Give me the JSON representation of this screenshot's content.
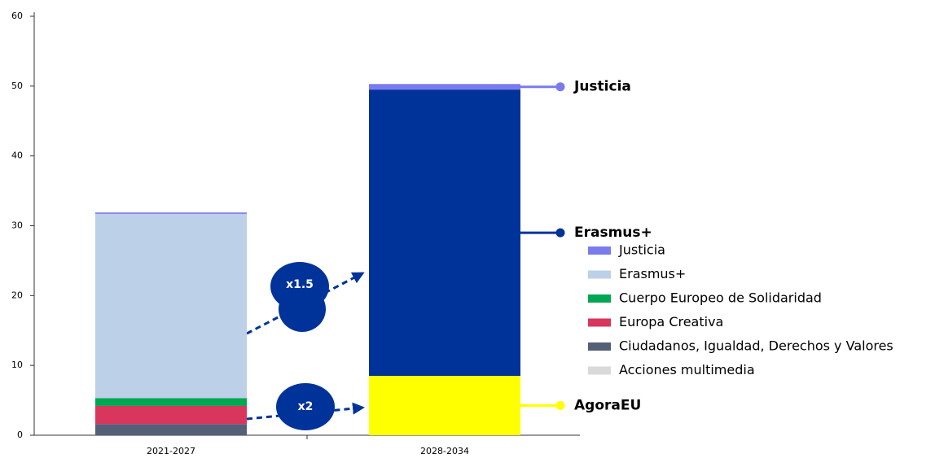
{
  "chart_data": {
    "type": "stacked-bar",
    "categories": [
      "2021-2027",
      "2028-2034"
    ],
    "ylim": [
      0,
      60
    ],
    "yticks": [
      0,
      10,
      20,
      30,
      40,
      50,
      60
    ],
    "series": [
      {
        "name": "Justicia",
        "color": "#7b7bef",
        "values": [
          0.2,
          0.8
        ],
        "legend": true,
        "callout": true
      },
      {
        "name": "Erasmus+",
        "color": "#bcd0e8",
        "values": [
          26.4,
          null
        ],
        "legend": true,
        "callout": false
      },
      {
        "name": "Cuerpo Europeo de Solidaridad",
        "color": "#00a651",
        "values": [
          1.1,
          null
        ],
        "legend": true,
        "callout": false
      },
      {
        "name": "Europa Creativa",
        "color": "#d9365e",
        "values": [
          2.6,
          null
        ],
        "legend": true,
        "callout": false
      },
      {
        "name": "Ciudadanos, Igualdad, Derechos y Valores",
        "color": "#555f78",
        "values": [
          1.6,
          null
        ],
        "legend": true,
        "callout": false
      },
      {
        "name": "Acciones multimedia",
        "color": "#d9d9d9",
        "values": [
          0,
          null
        ],
        "legend": true,
        "callout": false
      },
      {
        "name": "Erasmus+",
        "color": "#003399",
        "values": [
          null,
          41
        ],
        "legend": false,
        "callout": true
      },
      {
        "name": "AgoraEU",
        "color": "#ffff00",
        "values": [
          null,
          8.5
        ],
        "legend": false,
        "callout": true
      }
    ],
    "annotations": [
      {
        "text": "x1.5"
      },
      {
        "text": "x2"
      }
    ]
  }
}
